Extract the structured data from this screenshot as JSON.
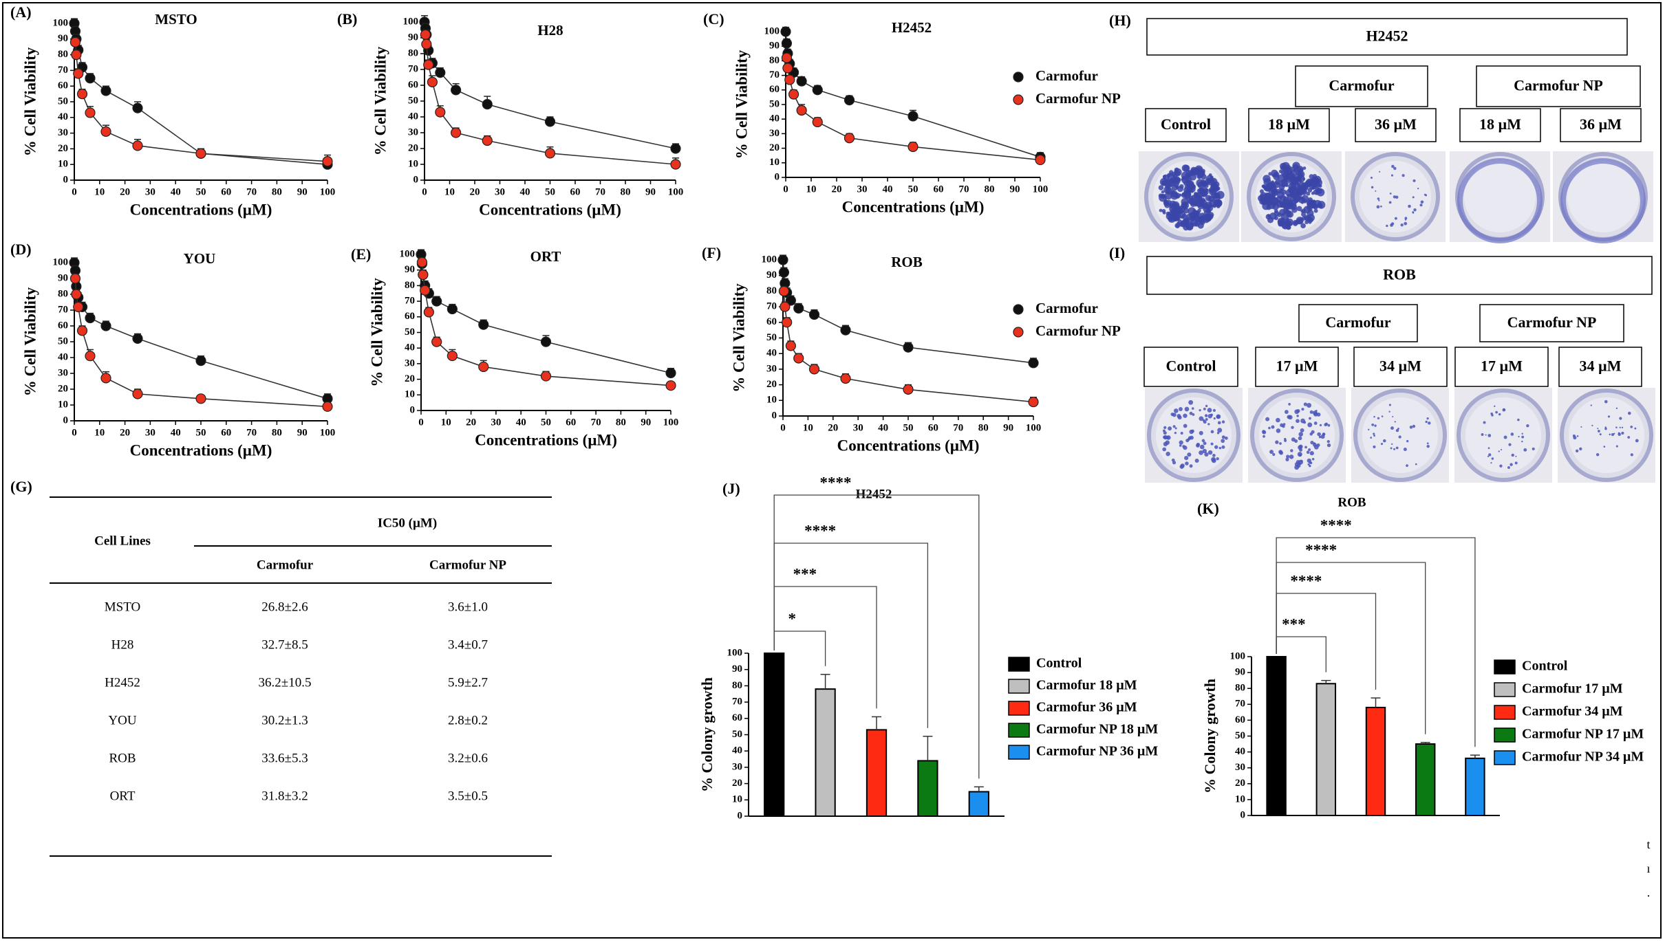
{
  "panel_labels": {
    "A": "(A)",
    "B": "(B)",
    "C": "(C)",
    "D": "(D)",
    "E": "(E)",
    "F": "(F)",
    "G": "(G)",
    "H": "(H)",
    "I": "(I)",
    "J": "(J)",
    "K": "(K)"
  },
  "legend_lines": {
    "carmofur": "Carmofur",
    "carmofur_np": "Carmofur NP"
  },
  "colors": {
    "carmofur": "#111111",
    "carmofur_np": "#e8321e",
    "line": "#333333",
    "np_line": "#444444"
  },
  "chart_data": [
    {
      "type": "line",
      "panel": "A",
      "title": "MSTO",
      "xlabel": "Concentrations (µM)",
      "ylabel": "% Cell Viability",
      "xlim": [
        0,
        100
      ],
      "ylim": [
        0,
        100
      ],
      "xticks": [
        0,
        10,
        20,
        30,
        40,
        50,
        60,
        70,
        80,
        90,
        100
      ],
      "yticks": [
        0,
        10,
        20,
        30,
        40,
        50,
        60,
        70,
        80,
        90,
        100
      ],
      "series": [
        {
          "name": "Carmofur",
          "x": [
            0,
            0.39,
            0.78,
            1.56,
            3.125,
            6.25,
            12.5,
            25,
            50,
            100
          ],
          "y": [
            100,
            95,
            90,
            83,
            72,
            65,
            57,
            46,
            17,
            10
          ],
          "err": [
            3,
            3,
            3,
            3,
            3,
            3,
            3,
            4,
            3,
            3
          ]
        },
        {
          "name": "Carmofur NP",
          "x": [
            0.39,
            0.78,
            1.56,
            3.125,
            6.25,
            12.5,
            25,
            50,
            100
          ],
          "y": [
            88,
            80,
            68,
            55,
            43,
            31,
            22,
            17,
            12
          ],
          "err": [
            3,
            3,
            3,
            3,
            4,
            4,
            4,
            3,
            4
          ]
        }
      ]
    },
    {
      "type": "line",
      "panel": "B",
      "title": "H28",
      "xlabel": "Concentrations (µM)",
      "ylabel": "% Cell Viability",
      "xlim": [
        0,
        100
      ],
      "ylim": [
        0,
        100
      ],
      "xticks": [
        0,
        10,
        20,
        30,
        40,
        50,
        60,
        70,
        80,
        90,
        100
      ],
      "yticks": [
        0,
        10,
        20,
        30,
        40,
        50,
        60,
        70,
        80,
        90,
        100
      ],
      "series": [
        {
          "name": "Carmofur",
          "x": [
            0,
            0.39,
            0.78,
            1.56,
            3.125,
            6.25,
            12.5,
            25,
            50,
            100
          ],
          "y": [
            100,
            96,
            92,
            82,
            74,
            68,
            57,
            48,
            37,
            20
          ],
          "err": [
            4,
            3,
            3,
            3,
            3,
            3,
            4,
            5,
            3,
            3
          ]
        },
        {
          "name": "Carmofur NP",
          "x": [
            0.39,
            0.78,
            1.56,
            3.125,
            6.25,
            12.5,
            25,
            50,
            100
          ],
          "y": [
            92,
            86,
            73,
            62,
            43,
            30,
            25,
            17,
            10
          ],
          "err": [
            3,
            3,
            3,
            4,
            4,
            3,
            3,
            4,
            4
          ]
        }
      ]
    },
    {
      "type": "line",
      "panel": "C",
      "title": "H2452",
      "xlabel": "Concentrations (µM)",
      "ylabel": "% Cell Viability",
      "xlim": [
        0,
        100
      ],
      "ylim": [
        0,
        100
      ],
      "xticks": [
        0,
        10,
        20,
        30,
        40,
        50,
        60,
        70,
        80,
        90,
        100
      ],
      "yticks": [
        0,
        10,
        20,
        30,
        40,
        50,
        60,
        70,
        80,
        90,
        100
      ],
      "legend": {
        "position": "right",
        "entries": [
          "Carmofur",
          "Carmofur NP"
        ]
      },
      "series": [
        {
          "name": "Carmofur",
          "x": [
            0,
            0.39,
            0.78,
            1.56,
            3.125,
            6.25,
            12.5,
            25,
            50,
            100
          ],
          "y": [
            100,
            92,
            85,
            78,
            72,
            66,
            60,
            53,
            42,
            14
          ],
          "err": [
            3,
            3,
            3,
            3,
            3,
            3,
            3,
            3,
            4,
            3
          ]
        },
        {
          "name": "Carmofur NP",
          "x": [
            0.39,
            0.78,
            1.56,
            3.125,
            6.25,
            12.5,
            25,
            50,
            100
          ],
          "y": [
            82,
            75,
            67,
            57,
            46,
            38,
            27,
            21,
            12
          ],
          "err": [
            3,
            3,
            3,
            3,
            4,
            3,
            3,
            3,
            3
          ]
        }
      ]
    },
    {
      "type": "line",
      "panel": "D",
      "title": "YOU",
      "xlabel": "Concentrations (µM)",
      "ylabel": "% Cell Viability",
      "xlim": [
        0,
        100
      ],
      "ylim": [
        0,
        100
      ],
      "xticks": [
        0,
        10,
        20,
        30,
        40,
        50,
        60,
        70,
        80,
        90,
        100
      ],
      "yticks": [
        0,
        10,
        20,
        30,
        40,
        50,
        60,
        70,
        80,
        90,
        100
      ],
      "series": [
        {
          "name": "Carmofur",
          "x": [
            0,
            0.39,
            0.78,
            1.56,
            3.125,
            6.25,
            12.5,
            25,
            50,
            100
          ],
          "y": [
            100,
            95,
            85,
            78,
            72,
            65,
            60,
            52,
            38,
            14
          ],
          "err": [
            3,
            3,
            3,
            3,
            3,
            3,
            3,
            3,
            3,
            3
          ]
        },
        {
          "name": "Carmofur NP",
          "x": [
            0.39,
            0.78,
            1.56,
            3.125,
            6.25,
            12.5,
            25,
            50,
            100
          ],
          "y": [
            90,
            80,
            72,
            57,
            41,
            27,
            17,
            14,
            9
          ],
          "err": [
            3,
            3,
            3,
            3,
            4,
            4,
            3,
            2,
            2
          ]
        }
      ]
    },
    {
      "type": "line",
      "panel": "E",
      "title": "ORT",
      "xlabel": "Concentrations (µM)",
      "ylabel": "% Cell Viability",
      "xlim": [
        0,
        100
      ],
      "ylim": [
        0,
        100
      ],
      "xticks": [
        0,
        10,
        20,
        30,
        40,
        50,
        60,
        70,
        80,
        90,
        100
      ],
      "yticks": [
        0,
        10,
        20,
        30,
        40,
        50,
        60,
        70,
        80,
        90,
        100
      ],
      "series": [
        {
          "name": "Carmofur",
          "x": [
            0,
            0.39,
            0.78,
            1.56,
            3.125,
            6.25,
            12.5,
            25,
            50,
            100
          ],
          "y": [
            100,
            94,
            87,
            80,
            75,
            70,
            65,
            55,
            44,
            24
          ],
          "err": [
            3,
            3,
            3,
            3,
            3,
            3,
            3,
            3,
            4,
            3
          ]
        },
        {
          "name": "Carmofur NP",
          "x": [
            0.39,
            0.78,
            1.56,
            3.125,
            6.25,
            12.5,
            25,
            50,
            100
          ],
          "y": [
            95,
            87,
            77,
            63,
            44,
            35,
            28,
            22,
            16
          ],
          "err": [
            3,
            3,
            3,
            3,
            3,
            4,
            4,
            3,
            2
          ]
        }
      ]
    },
    {
      "type": "line",
      "panel": "F",
      "title": "ROB",
      "xlabel": "Concentrations (µM)",
      "ylabel": "% Cell Viability",
      "xlim": [
        0,
        100
      ],
      "ylim": [
        0,
        100
      ],
      "xticks": [
        0,
        10,
        20,
        30,
        40,
        50,
        60,
        70,
        80,
        90,
        100
      ],
      "yticks": [
        0,
        10,
        20,
        30,
        40,
        50,
        60,
        70,
        80,
        90,
        100
      ],
      "legend": {
        "position": "right",
        "entries": [
          "Carmofur",
          "Carmofur NP"
        ]
      },
      "series": [
        {
          "name": "Carmofur",
          "x": [
            0,
            0.39,
            0.78,
            1.56,
            3.125,
            6.25,
            12.5,
            25,
            50,
            100
          ],
          "y": [
            100,
            92,
            85,
            79,
            74,
            69,
            65,
            55,
            44,
            34
          ],
          "err": [
            3,
            3,
            3,
            3,
            3,
            3,
            3,
            3,
            3,
            3
          ]
        },
        {
          "name": "Carmofur NP",
          "x": [
            0.39,
            0.78,
            1.56,
            3.125,
            6.25,
            12.5,
            25,
            50,
            100
          ],
          "y": [
            80,
            70,
            60,
            45,
            37,
            30,
            24,
            17,
            9
          ],
          "err": [
            3,
            3,
            3,
            3,
            3,
            3,
            3,
            3,
            3
          ]
        }
      ]
    },
    {
      "type": "table",
      "panel": "G",
      "columns": [
        "Cell Lines",
        "Carmofur",
        "Carmofur NP"
      ],
      "group_header": "IC50 (µM)",
      "rows": [
        [
          "MSTO",
          "26.8±2.6",
          "3.6±1.0"
        ],
        [
          "H28",
          "32.7±8.5",
          "3.4±0.7"
        ],
        [
          "H2452",
          "36.2±10.5",
          "5.9±2.7"
        ],
        [
          "YOU",
          "30.2±1.3",
          "2.8±0.2"
        ],
        [
          "ROB",
          "33.6±5.3",
          "3.2±0.6"
        ],
        [
          "ORT",
          "31.8±3.2",
          "3.5±0.5"
        ]
      ]
    },
    {
      "type": "bar",
      "panel": "J",
      "title": "H2452",
      "ylabel": "% Colony growth",
      "ylim": [
        0,
        100
      ],
      "yticks": [
        0,
        10,
        20,
        30,
        40,
        50,
        60,
        70,
        80,
        90,
        100
      ],
      "categories": [
        "Control",
        "Carmofur 18 µM",
        "Carmofur 36 µM",
        "Carmofur NP 18 µM",
        "Carmofur NP 36 µM"
      ],
      "values": [
        100,
        78,
        53,
        34,
        15
      ],
      "err": [
        0,
        9,
        8,
        15,
        3
      ],
      "colors": [
        "#000000",
        "#bfbfbf",
        "#ff2a12",
        "#0c7a12",
        "#1a8ff0"
      ],
      "significance": [
        "*",
        "***",
        "****",
        "****"
      ],
      "legend": {
        "position": "right"
      }
    },
    {
      "type": "bar",
      "panel": "K",
      "title": "ROB",
      "ylabel": "% Colony growth",
      "ylim": [
        0,
        100
      ],
      "yticks": [
        0,
        10,
        20,
        30,
        40,
        50,
        60,
        70,
        80,
        90,
        100
      ],
      "categories": [
        "Control",
        "Carmofur 17 µM",
        "Carmofur 34 µM",
        "Carmofur NP 17 µM",
        "Carmofur NP 34 µM"
      ],
      "values": [
        100,
        83,
        68,
        45,
        36
      ],
      "err": [
        0,
        2,
        6,
        1,
        2
      ],
      "colors": [
        "#000000",
        "#bfbfbf",
        "#ff2a12",
        "#0c7a12",
        "#1a8ff0"
      ],
      "significance": [
        "***",
        "****",
        "****",
        "****"
      ],
      "legend": {
        "position": "right"
      }
    }
  ],
  "panel_H": {
    "title": "H2452",
    "group_carmofur": "Carmofur",
    "group_np": "Carmofur NP",
    "wells": [
      {
        "label": "Control",
        "density": "high"
      },
      {
        "label": "18 µM",
        "density": "high"
      },
      {
        "label": "36 µM",
        "density": "low"
      },
      {
        "label": "18 µM",
        "density": "none"
      },
      {
        "label": "36 µM",
        "density": "none"
      }
    ]
  },
  "panel_I": {
    "title": "ROB",
    "group_carmofur": "Carmofur",
    "group_np": "Carmofur NP",
    "wells": [
      {
        "label": "Control",
        "density": "medium"
      },
      {
        "label": "17 µM",
        "density": "medium"
      },
      {
        "label": "34 µM",
        "density": "low"
      },
      {
        "label": "17 µM",
        "density": "low"
      },
      {
        "label": "34 µM",
        "density": "low"
      }
    ]
  },
  "stray_chars": [
    "t",
    "ı",
    "."
  ]
}
